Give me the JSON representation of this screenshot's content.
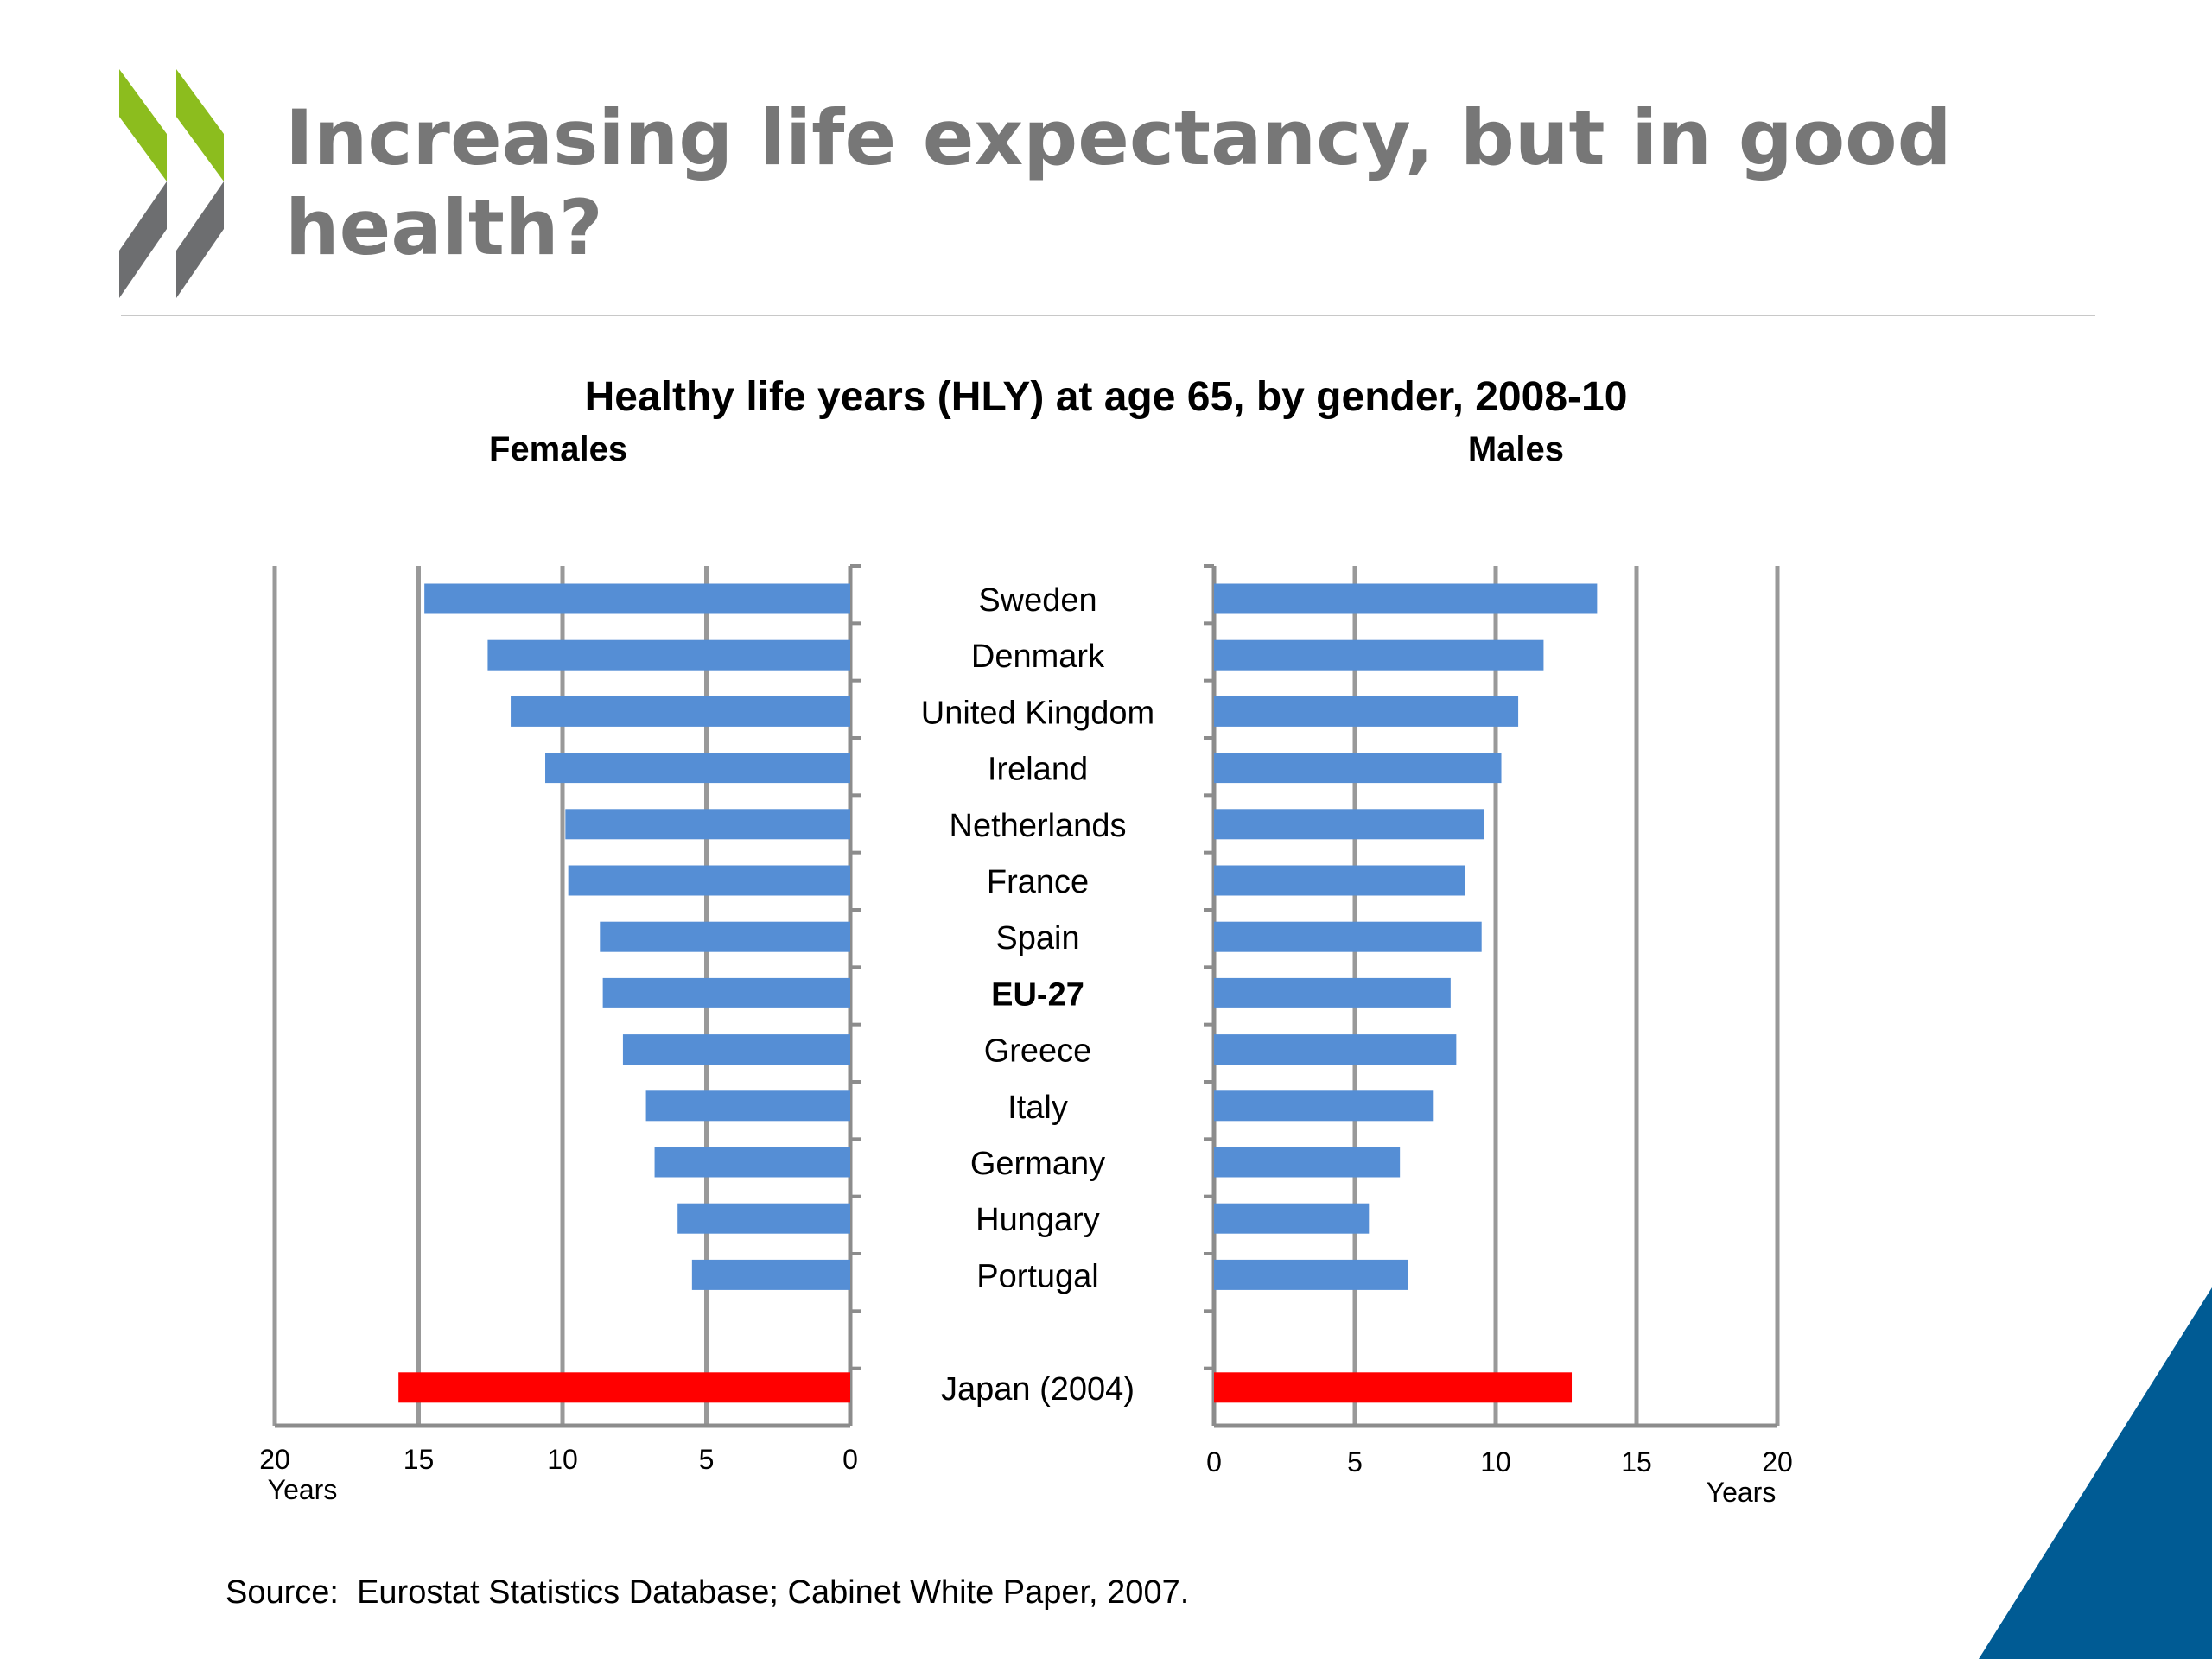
{
  "slide": {
    "title": "Increasing life expectancy, but in good health?",
    "source": "Source:  Eurostat Statistics Database; Cabinet White Paper, 2007."
  },
  "colors": {
    "bar": "#558ed5",
    "highlight_bar": "#ff0000",
    "title": "#777777",
    "logo_green": "#8cbd1e",
    "logo_gray": "#6d6e70",
    "corner": "#005b94"
  },
  "chart_data": {
    "type": "bar",
    "orientation": "horizontal",
    "title": "Healthy life years (HLY) at age 65, by gender, 2008-10",
    "categories": [
      "Sweden",
      "Denmark",
      "United Kingdom",
      "Ireland",
      "Netherlands",
      "France",
      "Spain",
      "EU-27",
      "Greece",
      "Italy",
      "Germany",
      "Hungary",
      "Portugal",
      "Japan (2004)"
    ],
    "bold_categories": [
      "EU-27"
    ],
    "highlight_categories": [
      "Japan (2004)"
    ],
    "series": [
      {
        "name": "Females",
        "values": [
          14.8,
          12.6,
          11.8,
          10.6,
          9.9,
          9.8,
          8.7,
          8.6,
          7.9,
          7.1,
          6.8,
          6.0,
          5.5,
          15.7
        ]
      },
      {
        "name": "Males",
        "values": [
          13.6,
          11.7,
          10.8,
          10.2,
          9.6,
          8.9,
          9.5,
          8.4,
          8.6,
          7.8,
          6.6,
          5.5,
          6.9,
          12.7
        ]
      }
    ],
    "xlim": [
      0,
      20
    ],
    "xticks": [
      0,
      5,
      10,
      15,
      20
    ],
    "xlabel": "Years",
    "grid": true
  }
}
